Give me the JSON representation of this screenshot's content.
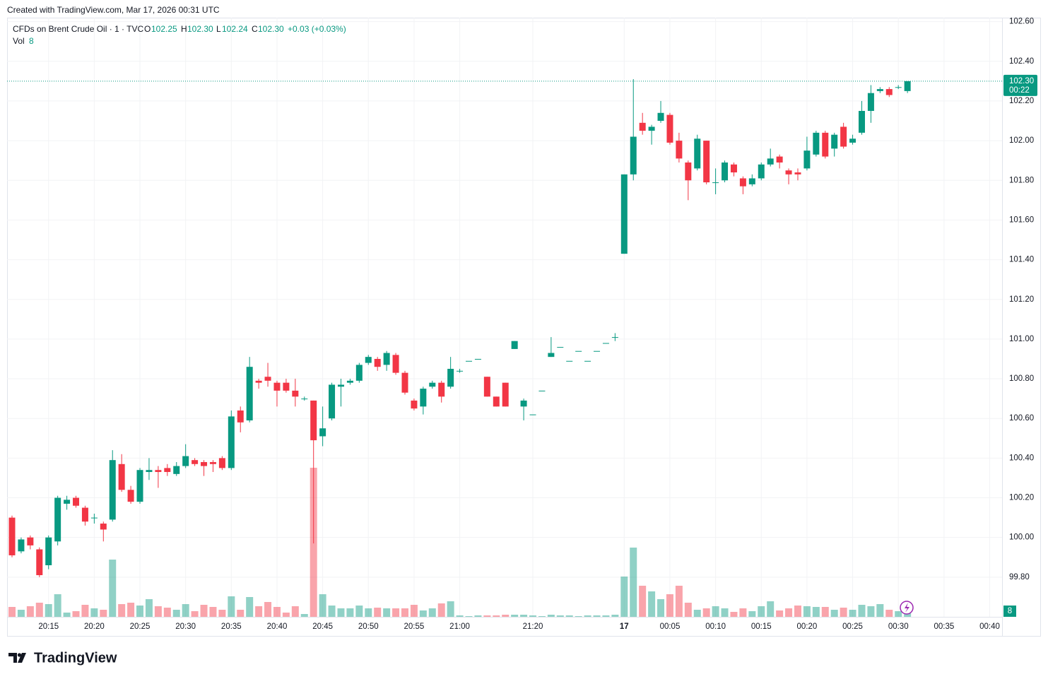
{
  "header": {
    "credit": "Created with TradingView.com, Mar 17, 2026 00:31 UTC"
  },
  "footer": {
    "logo": "TradingView"
  },
  "chart_data": {
    "type": "candlestick",
    "legend": {
      "symbol": "CFDs on Brent Crude Oil · 1 · TVC",
      "o_label": "O",
      "o": "102.25",
      "h_label": "H",
      "h": "102.30",
      "l_label": "L",
      "l": "102.24",
      "c_label": "C",
      "c": "102.30",
      "change": "+0.03 (+0.03%)",
      "vol_label": "Vol"
    },
    "price_tag": {
      "price": "102.30",
      "countdown": "00:22"
    },
    "up_color": "#089981",
    "down_color": "#f23645",
    "ylim": [
      99.6,
      102.62
    ],
    "yticks": [
      {
        "value": 99.8,
        "label": "99.80"
      },
      {
        "value": 100,
        "label": "100.00"
      },
      {
        "value": 100.2,
        "label": "100.20"
      },
      {
        "value": 100.4,
        "label": "100.40"
      },
      {
        "value": 100.6,
        "label": "100.60"
      },
      {
        "value": 100.8,
        "label": "100.80"
      },
      {
        "value": 101,
        "label": "101.00"
      },
      {
        "value": 101.2,
        "label": "101.20"
      },
      {
        "value": 101.4,
        "label": "101.40"
      },
      {
        "value": 101.6,
        "label": "101.60"
      },
      {
        "value": 101.8,
        "label": "101.80"
      },
      {
        "value": 102,
        "label": "102.00"
      },
      {
        "value": 102.2,
        "label": "102.20"
      },
      {
        "value": 102.4,
        "label": "102.40"
      },
      {
        "value": 102.6,
        "label": "102.60"
      }
    ],
    "grid": true,
    "categories": [
      null,
      null,
      null,
      null,
      "20:15",
      null,
      null,
      null,
      null,
      "20:20",
      null,
      null,
      null,
      null,
      "20:25",
      null,
      null,
      null,
      null,
      "20:30",
      null,
      null,
      null,
      null,
      "20:35",
      null,
      null,
      null,
      null,
      "20:40",
      null,
      null,
      null,
      null,
      "20:45",
      null,
      null,
      null,
      null,
      "20:50",
      null,
      null,
      null,
      null,
      "20:55",
      null,
      null,
      null,
      null,
      "21:00",
      null,
      null,
      null,
      null,
      null,
      null,
      null,
      "21:20",
      null,
      null,
      null,
      null,
      null,
      null,
      null,
      null,
      null,
      "17",
      null,
      null,
      null,
      null,
      "00:05",
      null,
      null,
      null,
      null,
      "00:10",
      null,
      null,
      null,
      null,
      "00:15",
      null,
      null,
      null,
      null,
      "00:20",
      null,
      null,
      null,
      null,
      "00:25",
      null,
      null,
      null,
      null,
      "00:30",
      null,
      null,
      null,
      null,
      "00:35",
      null,
      null,
      null,
      null,
      "00:40"
    ],
    "open": [
      100.1,
      99.93,
      100.0,
      99.94,
      99.86,
      99.98,
      100.17,
      100.2,
      100.15,
      100.1,
      100.07,
      100.09,
      100.37,
      100.24,
      100.18,
      100.33,
      100.34,
      100.35,
      100.32,
      100.36,
      100.39,
      100.38,
      100.38,
      100.4,
      100.35,
      100.64,
      100.59,
      100.79,
      100.81,
      100.78,
      100.78,
      100.74,
      100.7,
      100.69,
      100.51,
      100.6,
      100.76,
      100.78,
      100.79,
      100.88,
      100.9,
      100.87,
      100.92,
      100.83,
      100.69,
      100.66,
      100.76,
      100.78,
      100.76,
      100.84,
      100.89,
      100.9,
      100.81,
      100.71,
      100.78,
      100.95,
      100.66,
      100.62,
      100.74,
      100.91,
      100.96,
      100.89,
      100.94,
      100.89,
      100.94,
      100.98,
      101.01,
      101.43,
      101.83,
      102.09,
      102.05,
      102.1,
      102.13,
      102.0,
      101.89,
      101.86,
      102.0,
      101.79,
      101.8,
      101.88,
      101.81,
      101.78,
      101.81,
      101.88,
      101.92,
      101.85,
      101.84,
      101.86,
      101.93,
      102.04,
      101.96,
      102.07,
      101.99,
      102.04,
      102.15,
      102.25,
      102.26,
      102.27,
      102.25,
      null,
      null,
      null,
      null,
      null,
      null,
      null,
      null,
      null
    ],
    "high": [
      100.11,
      100.0,
      100.01,
      99.95,
      100.01,
      100.21,
      100.21,
      100.21,
      100.16,
      100.12,
      100.08,
      100.44,
      100.42,
      100.26,
      100.35,
      100.4,
      100.36,
      100.37,
      100.38,
      100.47,
      100.4,
      100.39,
      100.39,
      100.41,
      100.64,
      100.66,
      100.91,
      100.8,
      100.88,
      100.79,
      100.8,
      100.8,
      100.71,
      100.69,
      100.66,
      100.78,
      100.8,
      100.8,
      100.88,
      100.92,
      100.91,
      100.94,
      100.93,
      100.84,
      100.7,
      100.76,
      100.79,
      100.79,
      100.91,
      100.85,
      100.89,
      100.9,
      100.81,
      100.71,
      100.78,
      100.99,
      100.7,
      100.62,
      100.74,
      101.01,
      100.96,
      100.89,
      100.94,
      100.89,
      100.94,
      100.98,
      101.03,
      101.83,
      102.31,
      102.14,
      102.08,
      102.2,
      102.14,
      102.04,
      101.9,
      102.03,
      102.0,
      101.86,
      101.9,
      101.89,
      101.82,
      101.83,
      101.89,
      101.96,
      101.93,
      101.86,
      101.86,
      102.02,
      102.05,
      102.05,
      102.04,
      102.09,
      102.03,
      102.2,
      102.28,
      102.27,
      102.27,
      102.28,
      102.3,
      null,
      null,
      null,
      null,
      null,
      null,
      null,
      null,
      null
    ],
    "low": [
      99.9,
      99.92,
      99.94,
      99.8,
      99.84,
      99.96,
      100.14,
      100.15,
      100.06,
      100.07,
      99.98,
      100.08,
      100.23,
      100.17,
      100.17,
      100.29,
      100.25,
      100.31,
      100.31,
      100.35,
      100.36,
      100.31,
      100.33,
      100.34,
      100.34,
      100.53,
      100.58,
      100.75,
      100.76,
      100.66,
      100.73,
      100.66,
      100.69,
      99.97,
      100.46,
      100.59,
      100.66,
      100.77,
      100.78,
      100.87,
      100.84,
      100.84,
      100.82,
      100.72,
      100.64,
      100.62,
      100.75,
      100.68,
      100.75,
      100.83,
      100.89,
      100.9,
      100.71,
      100.66,
      100.66,
      100.95,
      100.59,
      100.62,
      100.74,
      100.91,
      100.96,
      100.89,
      100.94,
      100.89,
      100.94,
      100.98,
      100.99,
      101.43,
      101.8,
      102.03,
      101.98,
      102.09,
      101.98,
      101.89,
      101.7,
      101.85,
      101.78,
      101.73,
      101.79,
      101.82,
      101.73,
      101.77,
      101.8,
      101.87,
      101.86,
      101.78,
      101.8,
      101.85,
      101.92,
      101.91,
      101.92,
      101.96,
      101.98,
      102.03,
      102.09,
      102.24,
      102.22,
      102.26,
      102.24,
      null,
      null,
      null,
      null,
      null,
      null,
      null,
      null,
      null
    ],
    "close": [
      99.91,
      99.99,
      99.96,
      99.81,
      100.0,
      100.2,
      100.19,
      100.16,
      100.08,
      100.1,
      100.04,
      100.39,
      100.24,
      100.18,
      100.34,
      100.34,
      100.33,
      100.33,
      100.36,
      100.41,
      100.37,
      100.36,
      100.37,
      100.35,
      100.61,
      100.58,
      100.86,
      100.78,
      100.79,
      100.74,
      100.74,
      100.71,
      100.7,
      100.49,
      100.55,
      100.77,
      100.77,
      100.79,
      100.87,
      100.91,
      100.86,
      100.93,
      100.83,
      100.73,
      100.65,
      100.75,
      100.78,
      100.71,
      100.85,
      100.84,
      100.89,
      100.9,
      100.71,
      100.66,
      100.66,
      100.99,
      100.69,
      100.62,
      100.74,
      100.93,
      100.96,
      100.89,
      100.94,
      100.89,
      100.94,
      100.98,
      101.01,
      101.83,
      102.02,
      102.05,
      102.07,
      102.14,
      101.99,
      101.91,
      101.8,
      102.01,
      101.79,
      101.79,
      101.89,
      101.84,
      101.77,
      101.81,
      101.88,
      101.91,
      101.89,
      101.83,
      101.83,
      101.95,
      102.04,
      101.92,
      102.03,
      101.97,
      102.01,
      102.15,
      102.24,
      102.26,
      102.23,
      102.27,
      102.3,
      null,
      null,
      null,
      null,
      null,
      null,
      null,
      null,
      null
    ],
    "volume": [
      14,
      10,
      15,
      20,
      18,
      32,
      6,
      8,
      17,
      12,
      10,
      81,
      18,
      20,
      16,
      25,
      15,
      13,
      10,
      18,
      8,
      17,
      14,
      10,
      29,
      10,
      28,
      15,
      21,
      14,
      6,
      15,
      4,
      211,
      32,
      16,
      12,
      12,
      16,
      12,
      13,
      12,
      12,
      12,
      17,
      9,
      12,
      19,
      22,
      2,
      1,
      2,
      2,
      2,
      3,
      3,
      3,
      2,
      1,
      3,
      2,
      2,
      1,
      2,
      2,
      2,
      3,
      57,
      98,
      44,
      36,
      25,
      32,
      44,
      20,
      10,
      12,
      15,
      12,
      7,
      12,
      8,
      15,
      22,
      9,
      12,
      16,
      15,
      14,
      14,
      10,
      13,
      10,
      17,
      15,
      18,
      10,
      8,
      8,
      null,
      null,
      null,
      null,
      null,
      null,
      null,
      null,
      null
    ]
  }
}
